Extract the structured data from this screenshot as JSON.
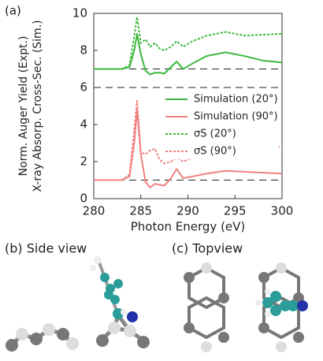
{
  "panel_a": "(a)",
  "panel_b": "(b) Side view",
  "panel_c": "(c) Topview",
  "chart_data": {
    "type": "line",
    "xlabel": "Photon Energy (eV)",
    "ylabel": [
      "Norm. Auger Yield (Expt.)",
      "X-ray Absorp. Cross-Sec. (Sim.)"
    ],
    "x": [
      280,
      283,
      283.8,
      284.3,
      284.6,
      285,
      285.5,
      286,
      286.5,
      287,
      287.5,
      288.2,
      288.8,
      289.5,
      290.5,
      292,
      294,
      296,
      298,
      300
    ],
    "series": [
      {
        "name": "Simulation (20°)",
        "color": "#3cb83c",
        "linestyle": "solid",
        "values": [
          7,
          7,
          7.1,
          8.0,
          8.9,
          7.8,
          6.9,
          6.7,
          6.8,
          6.8,
          6.75,
          7.1,
          7.4,
          7.0,
          7.3,
          7.7,
          7.9,
          7.7,
          7.45,
          7.35
        ]
      },
      {
        "name": "Simulation (90°)",
        "color": "#f08080",
        "linestyle": "solid",
        "values": [
          1,
          1,
          1.2,
          3.0,
          4.8,
          2.4,
          0.9,
          0.6,
          0.8,
          0.75,
          0.7,
          1.1,
          1.6,
          1.1,
          1.2,
          1.35,
          1.5,
          1.45,
          1.4,
          1.35
        ]
      },
      {
        "name": "σS (20°)",
        "color": "#3cb83c",
        "linestyle": "dotted",
        "values": [
          7,
          7,
          7.2,
          8.8,
          9.8,
          8.4,
          8.6,
          8.2,
          8.4,
          8.1,
          8.0,
          8.2,
          8.5,
          8.2,
          8.5,
          8.8,
          9.0,
          8.8,
          8.85,
          8.9
        ]
      },
      {
        "name": "σS (90°)",
        "color": "#f08080",
        "linestyle": "dotted",
        "values": [
          1,
          1,
          1.3,
          3.8,
          5.3,
          2.5,
          2.4,
          2.6,
          2.7,
          2.1,
          1.9,
          2.0,
          2.2,
          2.0,
          2.2,
          2.4,
          2.5,
          2.6,
          2.7,
          2.8
        ]
      }
    ],
    "hlines": [
      1,
      6,
      7
    ],
    "xlim": [
      280,
      300
    ],
    "xticks": [
      280,
      285,
      290,
      295,
      300
    ],
    "ylim": [
      0,
      10
    ],
    "yticks": [
      0,
      2,
      4,
      6,
      8,
      10
    ],
    "legend": "right"
  }
}
